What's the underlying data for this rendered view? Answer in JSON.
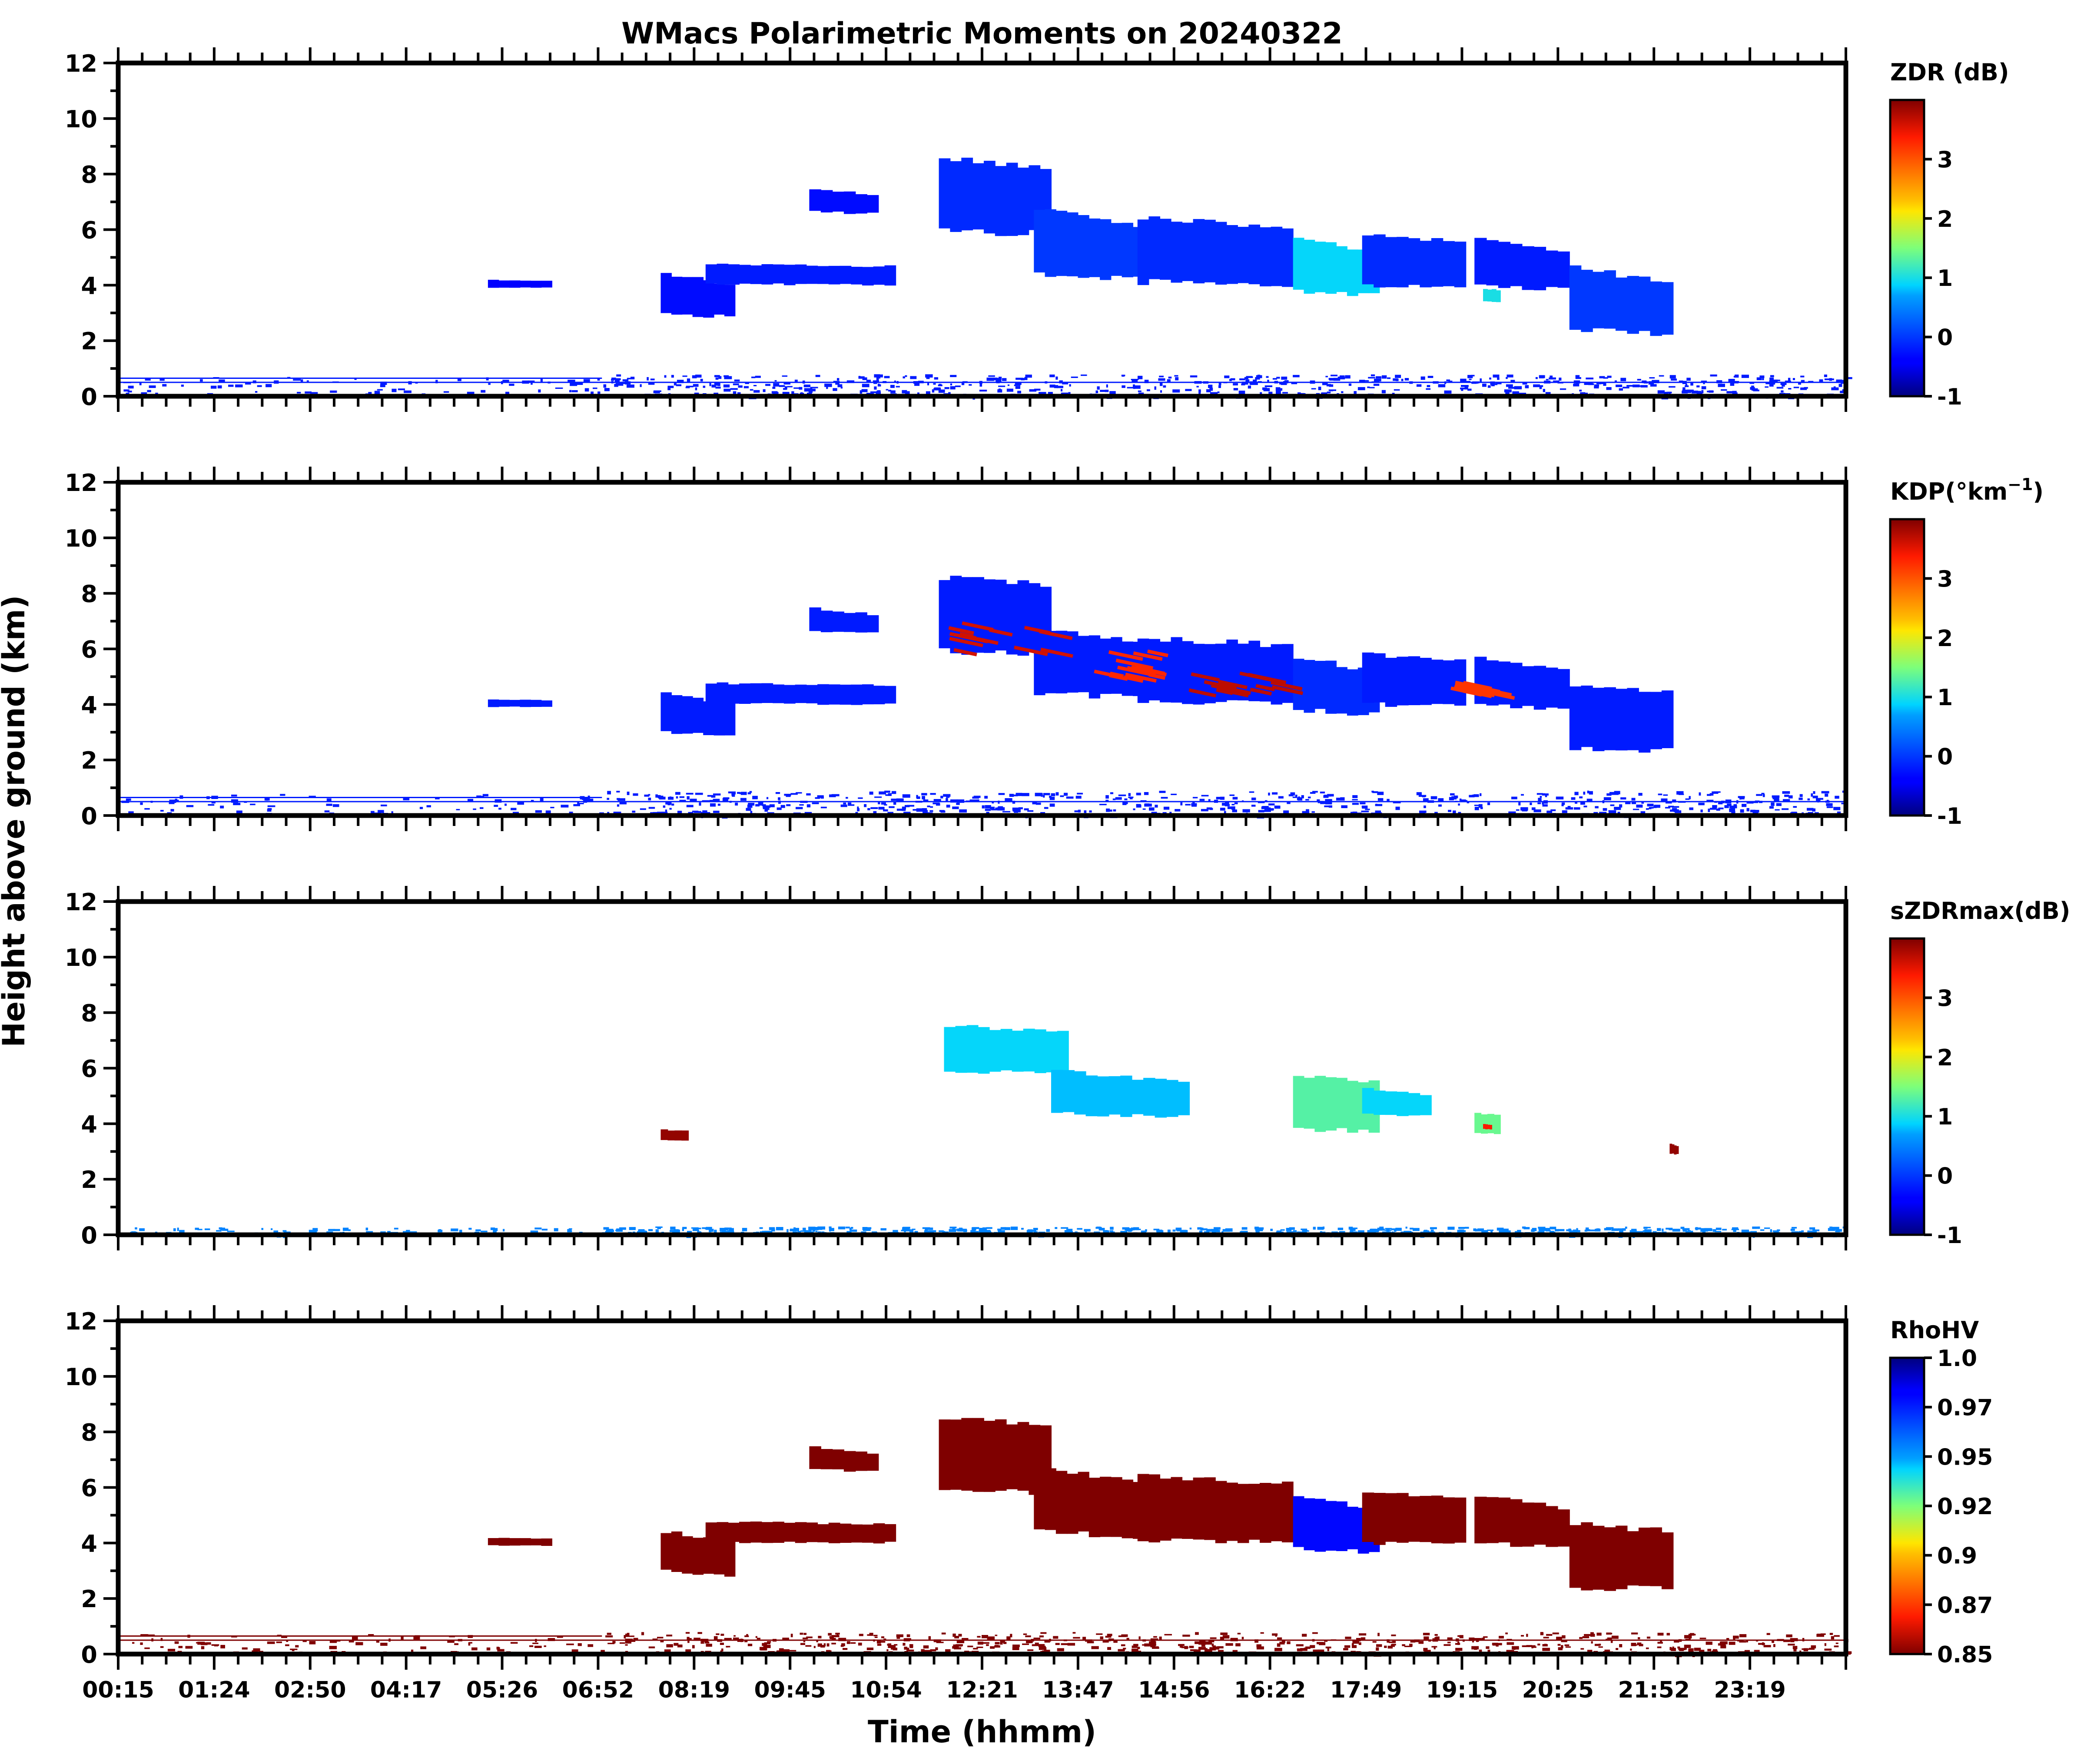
{
  "chart_data": {
    "type": "heatmap",
    "title": "WMacs Polarimetric Moments on 20240322",
    "xlabel": "Time (hhmm)",
    "ylabel": "Height above ground (km)",
    "x_ticklabels": [
      "00:15",
      "01:24",
      "02:50",
      "04:17",
      "05:26",
      "06:52",
      "08:19",
      "09:45",
      "10:54",
      "12:21",
      "13:47",
      "14:56",
      "16:22",
      "17:49",
      "19:15",
      "20:25",
      "21:52",
      "23:19"
    ],
    "y_ticks": [
      0,
      2,
      4,
      6,
      8,
      10,
      12
    ],
    "ylim": [
      0,
      12
    ],
    "panels": [
      {
        "variable": "ZDR",
        "colorbar_label": "ZDR (dB)",
        "colormap": "jet",
        "colorbar_ticks": [
          "-1",
          "0",
          "1",
          "2",
          "3"
        ],
        "colorbar_range": [
          -1,
          4
        ],
        "echoes": [
          {
            "t": [
              0.214,
              0.251
            ],
            "z": [
              3.9,
              4.2
            ],
            "v": -0.4
          },
          {
            "t": [
              0.314,
              0.357
            ],
            "z": [
              2.9,
              4.5
            ],
            "v": -0.3
          },
          {
            "t": [
              0.34,
              0.45
            ],
            "z": [
              4.0,
              4.8
            ],
            "v": -0.2
          },
          {
            "t": [
              0.4,
              0.44
            ],
            "z": [
              6.6,
              7.5
            ],
            "v": -0.3
          },
          {
            "t": [
              0.475,
              0.54
            ],
            "z": [
              5.8,
              8.7
            ],
            "v": -0.1
          },
          {
            "t": [
              0.53,
              0.6
            ],
            "z": [
              4.3,
              6.9
            ],
            "v": 0.0
          },
          {
            "t": [
              0.59,
              0.68
            ],
            "z": [
              4.0,
              6.5
            ],
            "v": -0.1
          },
          {
            "t": [
              0.68,
              0.73
            ],
            "z": [
              3.7,
              5.8
            ],
            "v": 0.9
          },
          {
            "t": [
              0.72,
              0.78
            ],
            "z": [
              3.9,
              5.9
            ],
            "v": -0.1
          },
          {
            "t": [
              0.785,
              0.84
            ],
            "z": [
              3.9,
              5.8
            ],
            "v": -0.2
          },
          {
            "t": [
              0.79,
              0.8
            ],
            "z": [
              3.4,
              3.9
            ],
            "v": 1.0
          },
          {
            "t": [
              0.84,
              0.9
            ],
            "z": [
              2.3,
              4.8
            ],
            "v": 0.0
          }
        ],
        "boundary_layer": {
          "z": [
            0,
            0.8
          ],
          "v": -0.2
        }
      },
      {
        "variable": "KDP",
        "colorbar_label": "KDP(°km",
        "colorbar_label_sup": "−1",
        "colorbar_label_end": ")",
        "colormap": "jet",
        "colorbar_ticks": [
          "-1",
          "0",
          "1",
          "2",
          "3"
        ],
        "colorbar_range": [
          -1,
          4
        ],
        "echoes": [
          {
            "t": [
              0.214,
              0.251
            ],
            "z": [
              3.9,
              4.2
            ],
            "v": -0.2
          },
          {
            "t": [
              0.314,
              0.357
            ],
            "z": [
              2.9,
              4.5
            ],
            "v": -0.2
          },
          {
            "t": [
              0.34,
              0.45
            ],
            "z": [
              4.0,
              4.8
            ],
            "v": -0.2
          },
          {
            "t": [
              0.4,
              0.44
            ],
            "z": [
              6.6,
              7.5
            ],
            "v": -0.2
          },
          {
            "t": [
              0.475,
              0.54
            ],
            "z": [
              5.8,
              8.7
            ],
            "v": -0.2
          },
          {
            "t": [
              0.53,
              0.6
            ],
            "z": [
              4.3,
              6.9
            ],
            "v": -0.2
          },
          {
            "t": [
              0.59,
              0.68
            ],
            "z": [
              4.0,
              6.5
            ],
            "v": -0.2
          },
          {
            "t": [
              0.68,
              0.73
            ],
            "z": [
              3.7,
              5.8
            ],
            "v": -0.1
          },
          {
            "t": [
              0.72,
              0.78
            ],
            "z": [
              3.9,
              5.9
            ],
            "v": -0.2
          },
          {
            "t": [
              0.785,
              0.84
            ],
            "z": [
              3.9,
              5.8
            ],
            "v": -0.2
          },
          {
            "t": [
              0.84,
              0.9
            ],
            "z": [
              2.3,
              4.8
            ],
            "v": -0.2
          }
        ],
        "streaks": [
          {
            "t": [
              0.48,
              0.54
            ],
            "z": [
              6.0,
              7.0
            ],
            "v": 3.6
          },
          {
            "t": [
              0.56,
              0.6
            ],
            "z": [
              5.0,
              6.0
            ],
            "v": 3.3
          },
          {
            "t": [
              0.62,
              0.67
            ],
            "z": [
              4.5,
              5.2
            ],
            "v": 3.7
          },
          {
            "t": [
              0.77,
              0.79
            ],
            "z": [
              4.5,
              4.9
            ],
            "v": 3.2
          }
        ],
        "boundary_layer": {
          "z": [
            0,
            0.9
          ],
          "v": -0.2
        }
      },
      {
        "variable": "sZDRmax",
        "colorbar_label": "sZDRmax(dB)",
        "colormap": "jet",
        "colorbar_ticks": [
          "-1",
          "0",
          "1",
          "2",
          "3"
        ],
        "colorbar_range": [
          -1,
          4
        ],
        "echoes": [
          {
            "t": [
              0.478,
              0.55
            ],
            "z": [
              5.8,
              7.6
            ],
            "v": 0.9
          },
          {
            "t": [
              0.54,
              0.62
            ],
            "z": [
              4.3,
              6.0
            ],
            "v": 0.8
          },
          {
            "t": [
              0.68,
              0.73
            ],
            "z": [
              3.7,
              5.8
            ],
            "v": 1.3
          },
          {
            "t": [
              0.72,
              0.76
            ],
            "z": [
              4.3,
              5.3
            ],
            "v": 0.9
          },
          {
            "t": [
              0.785,
              0.8
            ],
            "z": [
              3.6,
              4.4
            ],
            "v": 1.4
          },
          {
            "t": [
              0.79,
              0.795
            ],
            "z": [
              3.8,
              4.0
            ],
            "v": 3.4
          },
          {
            "t": [
              0.314,
              0.33
            ],
            "z": [
              3.4,
              3.8
            ],
            "v": 3.9
          },
          {
            "t": [
              0.898,
              0.903
            ],
            "z": [
              2.9,
              3.3
            ],
            "v": 3.9
          }
        ],
        "boundary_layer": {
          "z": [
            0,
            0.3
          ],
          "v": 0.5
        }
      },
      {
        "variable": "RhoHV",
        "colorbar_label": "RhoHV",
        "colormap": "jet_r",
        "colorbar_ticks": [
          "0.85",
          "0.87",
          "0.9",
          "0.92",
          "0.95",
          "0.97",
          "1.0"
        ],
        "colorbar_range": [
          0.85,
          1.0
        ],
        "echoes": [
          {
            "t": [
              0.214,
              0.251
            ],
            "z": [
              3.9,
              4.2
            ],
            "v": 0.85
          },
          {
            "t": [
              0.314,
              0.357
            ],
            "z": [
              2.9,
              4.5
            ],
            "v": 0.85
          },
          {
            "t": [
              0.34,
              0.45
            ],
            "z": [
              4.0,
              4.8
            ],
            "v": 0.85
          },
          {
            "t": [
              0.4,
              0.44
            ],
            "z": [
              6.6,
              7.5
            ],
            "v": 0.85
          },
          {
            "t": [
              0.475,
              0.54
            ],
            "z": [
              5.8,
              8.7
            ],
            "v": 0.85
          },
          {
            "t": [
              0.53,
              0.6
            ],
            "z": [
              4.3,
              6.9
            ],
            "v": 0.85
          },
          {
            "t": [
              0.59,
              0.68
            ],
            "z": [
              4.0,
              6.5
            ],
            "v": 0.85
          },
          {
            "t": [
              0.68,
              0.73
            ],
            "z": [
              3.7,
              5.8
            ],
            "v": 0.98
          },
          {
            "t": [
              0.72,
              0.78
            ],
            "z": [
              3.9,
              5.9
            ],
            "v": 0.85
          },
          {
            "t": [
              0.785,
              0.84
            ],
            "z": [
              3.9,
              5.8
            ],
            "v": 0.85
          },
          {
            "t": [
              0.84,
              0.9
            ],
            "z": [
              2.3,
              4.8
            ],
            "v": 0.85
          }
        ],
        "boundary_layer": {
          "z": [
            0,
            0.8
          ],
          "v": 0.85
        }
      }
    ]
  }
}
